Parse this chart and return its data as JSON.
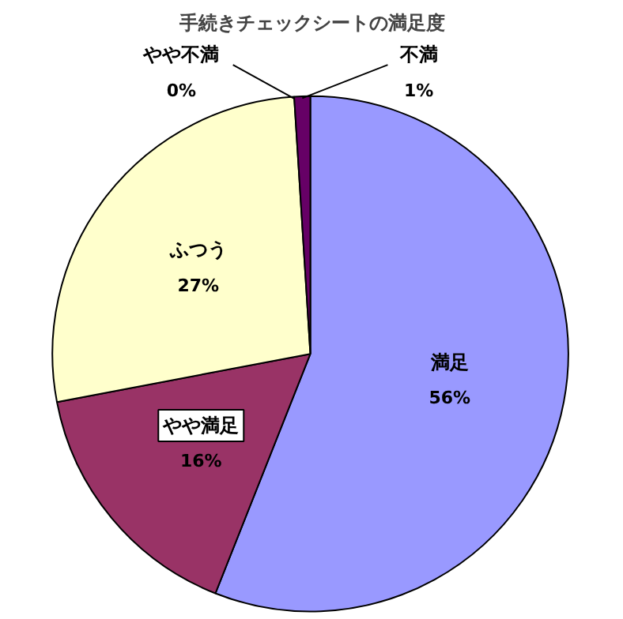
{
  "chart_data": {
    "type": "pie",
    "title": "手続きチェックシートの満足度",
    "categories": [
      "満足",
      "やや満足",
      "ふつう",
      "やや不満",
      "不満"
    ],
    "values": [
      56,
      16,
      27,
      0,
      1
    ],
    "value_labels": [
      "56%",
      "16%",
      "27%",
      "0%",
      "1%"
    ],
    "colors": [
      "#9999ff",
      "#993366",
      "#ffffcc",
      "#ffffcc",
      "#660066"
    ]
  }
}
